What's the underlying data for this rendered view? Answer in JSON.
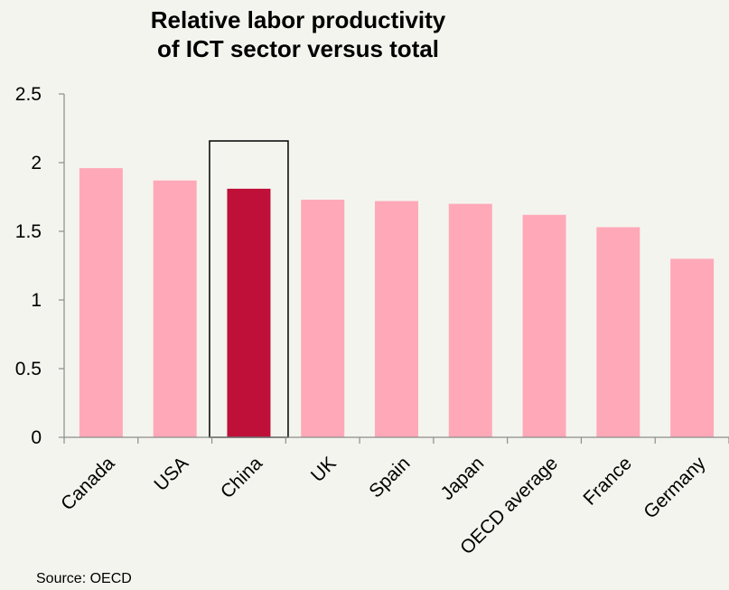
{
  "chart_data": {
    "type": "bar",
    "title_lines": [
      "Relative labor productivity",
      "of ICT sector versus total"
    ],
    "categories": [
      "Canada",
      "USA",
      "China",
      "UK",
      "Spain",
      "Japan",
      "OECD average",
      "France",
      "Germany"
    ],
    "values": [
      1.96,
      1.87,
      1.81,
      1.73,
      1.72,
      1.7,
      1.62,
      1.53,
      1.3
    ],
    "ylim": [
      0,
      2.5
    ],
    "yticks": [
      "0",
      "0.5",
      "1",
      "1.5",
      "2",
      "2.5"
    ],
    "xlabel": "",
    "ylabel": "",
    "grid": false,
    "highlighted_category": "China",
    "colors": {
      "bar": "#ffa9b8",
      "highlight": "#be1038",
      "axis": "#8c8c8c",
      "background": "#f4f4ee"
    }
  },
  "source": "Source: OECD"
}
